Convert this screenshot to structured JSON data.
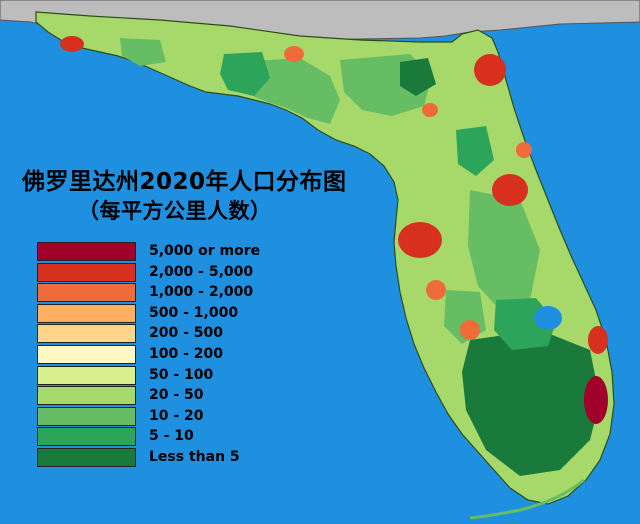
{
  "title": {
    "line1": "佛罗里达州2020年人口分布图",
    "line2": "（每平方公里人数）"
  },
  "legend": {
    "items": [
      {
        "label": "5,000 or more",
        "color": "#a0002a"
      },
      {
        "label": "2,000 - 5,000",
        "color": "#d7301f"
      },
      {
        "label": "1,000 - 2,000",
        "color": "#ef6b3a"
      },
      {
        "label": "500 - 1,000",
        "color": "#fdae61"
      },
      {
        "label": "200 - 500",
        "color": "#fed58a"
      },
      {
        "label": "100 - 200",
        "color": "#fff7c4"
      },
      {
        "label": "50 - 100",
        "color": "#d9ef8b"
      },
      {
        "label": "20 - 50",
        "color": "#a6d96a"
      },
      {
        "label": "10 - 20",
        "color": "#66bd63"
      },
      {
        "label": "5 - 10",
        "color": "#2ca55a"
      },
      {
        "label": "Less than 5",
        "color": "#1a7a3c"
      }
    ]
  },
  "colors": {
    "ocean": "#1f8fe0",
    "land_outside": "#bdbdbd",
    "border": "#333333"
  }
}
